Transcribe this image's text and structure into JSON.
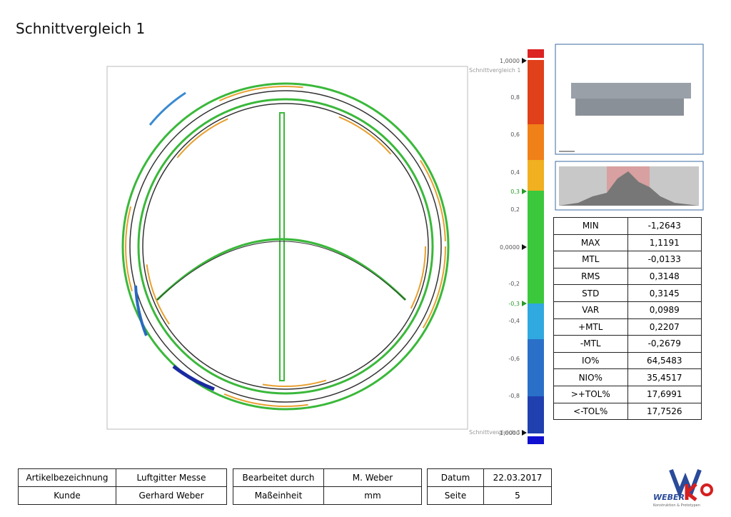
{
  "header": {
    "title": "Schnittvergleich 1"
  },
  "view": {
    "label_top": "Schnittvergleich 1",
    "label_bottom": "Schnittvergleich 1"
  },
  "color_scale": {
    "labels": [
      "1,0000",
      "0,8",
      "0,6",
      "0,4",
      "0,3",
      "0,2",
      "0,0000",
      "-0,2",
      "-0,3",
      "-0,4",
      "-0,6",
      "-0,8",
      "-1,0000"
    ]
  },
  "stats": {
    "rows": [
      [
        "MIN",
        "-1,2643"
      ],
      [
        "MAX",
        "1,1191"
      ],
      [
        "MTL",
        "-0,0133"
      ],
      [
        "RMS",
        "0,3148"
      ],
      [
        "STD",
        "0,3145"
      ],
      [
        "VAR",
        "0,0989"
      ],
      [
        "+MTL",
        "0,2207"
      ],
      [
        "-MTL",
        "-0,2679"
      ],
      [
        "IO%",
        "64,5483"
      ],
      [
        "NIO%",
        "35,4517"
      ],
      [
        ">+TOL%",
        "17,6991"
      ],
      [
        "<-TOL%",
        "17,7526"
      ]
    ]
  },
  "footer": {
    "tables": [
      [
        [
          "Artikelbezeichnung",
          "Luftgitter Messe"
        ],
        [
          "Kunde",
          "Gerhard Weber"
        ]
      ],
      [
        [
          "Bearbeitet durch",
          "M. Weber"
        ],
        [
          "Maßeinheit",
          "mm"
        ]
      ],
      [
        [
          "Datum",
          "22.03.2017"
        ],
        [
          "Seite",
          "5"
        ]
      ]
    ]
  },
  "logo": {
    "text": "WEBER",
    "subtitle": "Konstruktion & Prototypen"
  }
}
